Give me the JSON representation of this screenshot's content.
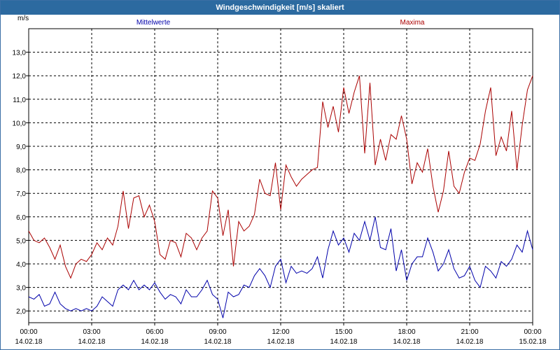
{
  "window": {
    "title": "Windgeschwindigkeit [m/s] skaliert"
  },
  "colors": {
    "mean": "#0000aa",
    "max": "#aa0000",
    "grid": "#000000",
    "titlebar": "#2c6aa0"
  },
  "chart_data": {
    "type": "line",
    "title": "Windgeschwindigkeit [m/s] skaliert",
    "ylabel": "m/s",
    "xlabel": "",
    "ylim": [
      1.5,
      14.0
    ],
    "xlim": [
      0,
      24
    ],
    "grid": true,
    "legend": [
      {
        "name": "Mittelwerte",
        "placement": "top-left",
        "color": "#0000aa"
      },
      {
        "name": "Maxima",
        "placement": "top-right",
        "color": "#aa0000"
      }
    ],
    "yticks": [
      {
        "value": 2,
        "label": "2,0"
      },
      {
        "value": 3,
        "label": "3,0"
      },
      {
        "value": 4,
        "label": "4,0"
      },
      {
        "value": 5,
        "label": "5,0"
      },
      {
        "value": 6,
        "label": "6,0"
      },
      {
        "value": 7,
        "label": "7,0"
      },
      {
        "value": 8,
        "label": "8,0"
      },
      {
        "value": 9,
        "label": "9,0"
      },
      {
        "value": 10,
        "label": "10,0"
      },
      {
        "value": 11,
        "label": "11,0"
      },
      {
        "value": 12,
        "label": "12,0"
      },
      {
        "value": 13,
        "label": "13,0"
      }
    ],
    "xticks": [
      {
        "value": 0,
        "time": "00:00",
        "date": "14.02.18"
      },
      {
        "value": 3,
        "time": "03:00",
        "date": "14.02.18"
      },
      {
        "value": 6,
        "time": "06:00",
        "date": "14.02.18"
      },
      {
        "value": 9,
        "time": "09:00",
        "date": "14.02.18"
      },
      {
        "value": 12,
        "time": "12:00",
        "date": "14.02.18"
      },
      {
        "value": 15,
        "time": "15:00",
        "date": "14.02.18"
      },
      {
        "value": 18,
        "time": "18:00",
        "date": "14.02.18"
      },
      {
        "value": 21,
        "time": "21:00",
        "date": "14.02.18"
      },
      {
        "value": 24,
        "time": "00:00",
        "date": "15.02.18"
      }
    ],
    "series": [
      {
        "name": "Mittelwerte",
        "color": "#0000aa",
        "points": [
          [
            0.0,
            2.6
          ],
          [
            0.25,
            2.5
          ],
          [
            0.5,
            2.7
          ],
          [
            0.75,
            2.2
          ],
          [
            1.0,
            2.3
          ],
          [
            1.25,
            2.8
          ],
          [
            1.5,
            2.3
          ],
          [
            1.75,
            2.1
          ],
          [
            2.0,
            2.0
          ],
          [
            2.25,
            2.1
          ],
          [
            2.5,
            2.0
          ],
          [
            2.75,
            2.1
          ],
          [
            3.0,
            2.0
          ],
          [
            3.25,
            2.2
          ],
          [
            3.5,
            2.6
          ],
          [
            3.75,
            2.4
          ],
          [
            4.0,
            2.2
          ],
          [
            4.25,
            2.9
          ],
          [
            4.5,
            3.1
          ],
          [
            4.75,
            2.9
          ],
          [
            5.0,
            3.3
          ],
          [
            5.25,
            2.9
          ],
          [
            5.5,
            3.1
          ],
          [
            5.75,
            2.9
          ],
          [
            6.0,
            3.2
          ],
          [
            6.25,
            2.8
          ],
          [
            6.5,
            2.5
          ],
          [
            6.75,
            2.7
          ],
          [
            7.0,
            2.6
          ],
          [
            7.25,
            2.3
          ],
          [
            7.5,
            2.9
          ],
          [
            7.75,
            2.6
          ],
          [
            8.0,
            2.6
          ],
          [
            8.25,
            2.9
          ],
          [
            8.5,
            3.3
          ],
          [
            8.75,
            2.7
          ],
          [
            9.0,
            2.5
          ],
          [
            9.25,
            1.7
          ],
          [
            9.5,
            2.8
          ],
          [
            9.75,
            2.6
          ],
          [
            10.0,
            2.7
          ],
          [
            10.25,
            3.1
          ],
          [
            10.5,
            3.0
          ],
          [
            10.75,
            3.5
          ],
          [
            11.0,
            3.8
          ],
          [
            11.25,
            3.5
          ],
          [
            11.5,
            3.0
          ],
          [
            11.75,
            3.9
          ],
          [
            12.0,
            4.2
          ],
          [
            12.25,
            3.2
          ],
          [
            12.5,
            3.9
          ],
          [
            12.75,
            3.6
          ],
          [
            13.0,
            3.7
          ],
          [
            13.25,
            3.6
          ],
          [
            13.5,
            3.8
          ],
          [
            13.75,
            4.3
          ],
          [
            14.0,
            3.4
          ],
          [
            14.25,
            4.6
          ],
          [
            14.5,
            5.4
          ],
          [
            14.75,
            4.8
          ],
          [
            15.0,
            5.1
          ],
          [
            15.25,
            4.5
          ],
          [
            15.5,
            5.3
          ],
          [
            15.75,
            5.0
          ],
          [
            16.0,
            5.8
          ],
          [
            16.25,
            5.0
          ],
          [
            16.5,
            6.0
          ],
          [
            16.75,
            4.7
          ],
          [
            17.0,
            4.6
          ],
          [
            17.25,
            5.5
          ],
          [
            17.5,
            3.7
          ],
          [
            17.75,
            4.6
          ],
          [
            18.0,
            3.3
          ],
          [
            18.25,
            4.0
          ],
          [
            18.5,
            4.3
          ],
          [
            18.75,
            4.3
          ],
          [
            19.0,
            5.1
          ],
          [
            19.25,
            4.5
          ],
          [
            19.5,
            3.7
          ],
          [
            19.75,
            4.0
          ],
          [
            20.0,
            4.6
          ],
          [
            20.25,
            3.8
          ],
          [
            20.5,
            3.4
          ],
          [
            20.75,
            3.5
          ],
          [
            21.0,
            3.9
          ],
          [
            21.25,
            3.3
          ],
          [
            21.5,
            3.0
          ],
          [
            21.75,
            3.9
          ],
          [
            22.0,
            3.7
          ],
          [
            22.25,
            3.4
          ],
          [
            22.5,
            4.1
          ],
          [
            22.75,
            3.9
          ],
          [
            23.0,
            4.2
          ],
          [
            23.25,
            4.8
          ],
          [
            23.5,
            4.5
          ],
          [
            23.75,
            5.4
          ],
          [
            24.0,
            4.6
          ]
        ]
      },
      {
        "name": "Maxima",
        "color": "#aa0000",
        "points": [
          [
            0.0,
            5.4
          ],
          [
            0.25,
            5.0
          ],
          [
            0.5,
            4.9
          ],
          [
            0.75,
            5.1
          ],
          [
            1.0,
            4.7
          ],
          [
            1.25,
            4.2
          ],
          [
            1.5,
            4.8
          ],
          [
            1.75,
            3.9
          ],
          [
            2.0,
            3.4
          ],
          [
            2.25,
            4.0
          ],
          [
            2.5,
            4.2
          ],
          [
            2.75,
            4.1
          ],
          [
            3.0,
            4.4
          ],
          [
            3.25,
            4.9
          ],
          [
            3.5,
            4.6
          ],
          [
            3.75,
            5.1
          ],
          [
            4.0,
            4.8
          ],
          [
            4.25,
            5.6
          ],
          [
            4.5,
            7.1
          ],
          [
            4.75,
            5.5
          ],
          [
            5.0,
            6.8
          ],
          [
            5.25,
            6.9
          ],
          [
            5.5,
            6.0
          ],
          [
            5.75,
            6.5
          ],
          [
            6.0,
            5.8
          ],
          [
            6.25,
            4.4
          ],
          [
            6.5,
            4.2
          ],
          [
            6.75,
            5.0
          ],
          [
            7.0,
            4.9
          ],
          [
            7.25,
            4.3
          ],
          [
            7.5,
            5.3
          ],
          [
            7.75,
            5.1
          ],
          [
            8.0,
            4.6
          ],
          [
            8.25,
            5.1
          ],
          [
            8.5,
            5.4
          ],
          [
            8.75,
            7.1
          ],
          [
            9.0,
            6.8
          ],
          [
            9.25,
            5.2
          ],
          [
            9.5,
            6.3
          ],
          [
            9.75,
            3.9
          ],
          [
            10.0,
            5.8
          ],
          [
            10.25,
            5.4
          ],
          [
            10.5,
            5.6
          ],
          [
            10.75,
            6.1
          ],
          [
            11.0,
            7.6
          ],
          [
            11.25,
            7.0
          ],
          [
            11.5,
            6.9
          ],
          [
            11.75,
            8.3
          ],
          [
            12.0,
            6.3
          ],
          [
            12.25,
            8.2
          ],
          [
            12.5,
            7.7
          ],
          [
            12.75,
            7.3
          ],
          [
            13.0,
            7.6
          ],
          [
            13.25,
            7.8
          ],
          [
            13.5,
            8.0
          ],
          [
            13.75,
            8.1
          ],
          [
            14.0,
            10.9
          ],
          [
            14.25,
            9.8
          ],
          [
            14.5,
            10.7
          ],
          [
            14.75,
            9.6
          ],
          [
            15.0,
            11.5
          ],
          [
            15.25,
            10.4
          ],
          [
            15.5,
            11.3
          ],
          [
            15.75,
            12.0
          ],
          [
            16.0,
            8.7
          ],
          [
            16.25,
            11.7
          ],
          [
            16.5,
            8.2
          ],
          [
            16.75,
            9.3
          ],
          [
            17.0,
            8.4
          ],
          [
            17.25,
            9.5
          ],
          [
            17.5,
            9.3
          ],
          [
            17.75,
            10.3
          ],
          [
            18.0,
            9.3
          ],
          [
            18.25,
            7.4
          ],
          [
            18.5,
            8.3
          ],
          [
            18.75,
            7.9
          ],
          [
            19.0,
            8.9
          ],
          [
            19.25,
            7.3
          ],
          [
            19.5,
            6.2
          ],
          [
            19.75,
            7.1
          ],
          [
            20.0,
            8.8
          ],
          [
            20.25,
            7.3
          ],
          [
            20.5,
            7.0
          ],
          [
            20.75,
            7.9
          ],
          [
            21.0,
            8.5
          ],
          [
            21.25,
            8.4
          ],
          [
            21.5,
            9.1
          ],
          [
            21.75,
            10.5
          ],
          [
            22.0,
            11.5
          ],
          [
            22.25,
            8.6
          ],
          [
            22.5,
            9.4
          ],
          [
            22.75,
            8.8
          ],
          [
            23.0,
            10.5
          ],
          [
            23.25,
            8.0
          ],
          [
            23.5,
            9.9
          ],
          [
            23.75,
            11.4
          ],
          [
            24.0,
            12.0
          ]
        ]
      }
    ]
  }
}
